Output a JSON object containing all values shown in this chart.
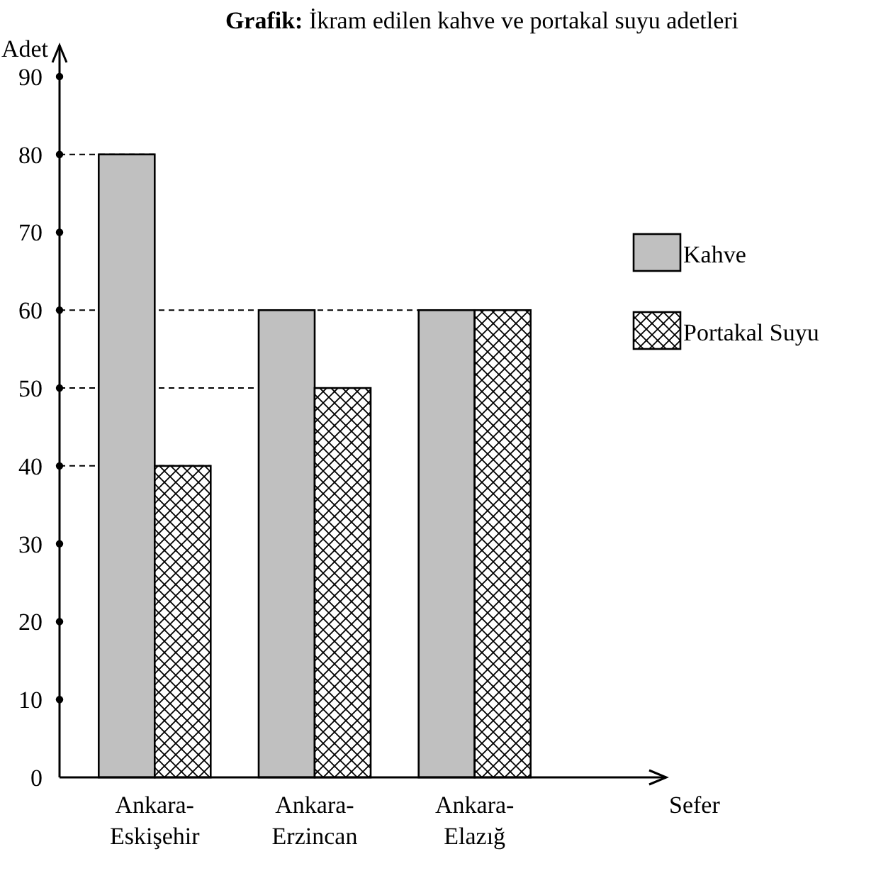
{
  "chart_data": {
    "type": "bar",
    "title": "Grafik: İkram edilen kahve ve portakal suyu adetleri",
    "xlabel": "Sefer",
    "ylabel": "Adet",
    "categories": [
      "Ankara-Eskişehir",
      "Ankara-Erzincan",
      "Ankara-Elazığ"
    ],
    "series": [
      {
        "name": "Kahve",
        "color": "#c0c0c0",
        "values": [
          80,
          60,
          60
        ]
      },
      {
        "name": "Portakal Suyu",
        "color": "#000000",
        "values": [
          40,
          50,
          60
        ]
      }
    ],
    "ylim": [
      0,
      94
    ],
    "yticks": [
      0,
      10,
      20,
      30,
      40,
      50,
      60,
      70,
      80,
      90
    ],
    "ref_lines": [
      {
        "axis": "y",
        "value": 80,
        "line_style": "dashed"
      },
      {
        "axis": "y",
        "value": 60,
        "line_style": "dashed"
      },
      {
        "axis": "y",
        "value": 50,
        "line_style": "dashed"
      },
      {
        "axis": "y",
        "value": 40,
        "line_style": "dashed"
      }
    ],
    "legend": "right"
  }
}
